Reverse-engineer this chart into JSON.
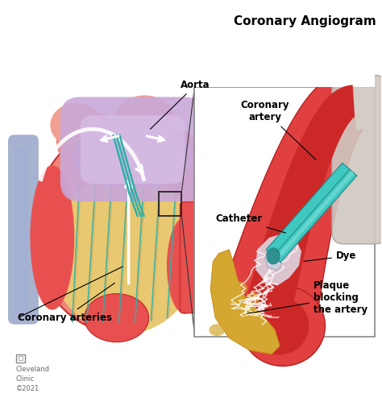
{
  "title": "Coronary Angiogram",
  "title_fontsize": 11,
  "title_fontweight": "bold",
  "background_color": "#ffffff",
  "labels": {
    "aorta": "Aorta",
    "coronary_artery": "Coronary\nartery",
    "catheter": "Catheter",
    "dye": "Dye",
    "plaque": "Plaque\nblocking\nthe artery",
    "coronary_arteries": "Coronary arteries"
  },
  "label_fontsize": 8.5,
  "label_fontweight": "bold",
  "watermark_text": "Cleveland\nClinic\n©2021",
  "watermark_fontsize": 6,
  "colors": {
    "heart_red_light": "#f0857a",
    "heart_red": "#e85050",
    "heart_red_dark": "#c83030",
    "heart_pink": "#f0a090",
    "heart_yellow": "#e8c870",
    "heart_yellow2": "#d4a830",
    "muscle_brown": "#c07848",
    "aorta_purple": "#c8a8d8",
    "aorta_purple2": "#b090c8",
    "vessel_teal": "#30b0a8",
    "catheter_teal": "#40c8c0",
    "catheter_dark": "#208888",
    "artery_red": "#e04040",
    "artery_dark": "#b82020",
    "plaque_yellow": "#d4a830",
    "plaque_yellow2": "#c89020",
    "dye_white": "#d8d8e8",
    "white": "#ffffff",
    "black": "#111111",
    "gray": "#888888",
    "blue_vessel": "#8898c0"
  }
}
